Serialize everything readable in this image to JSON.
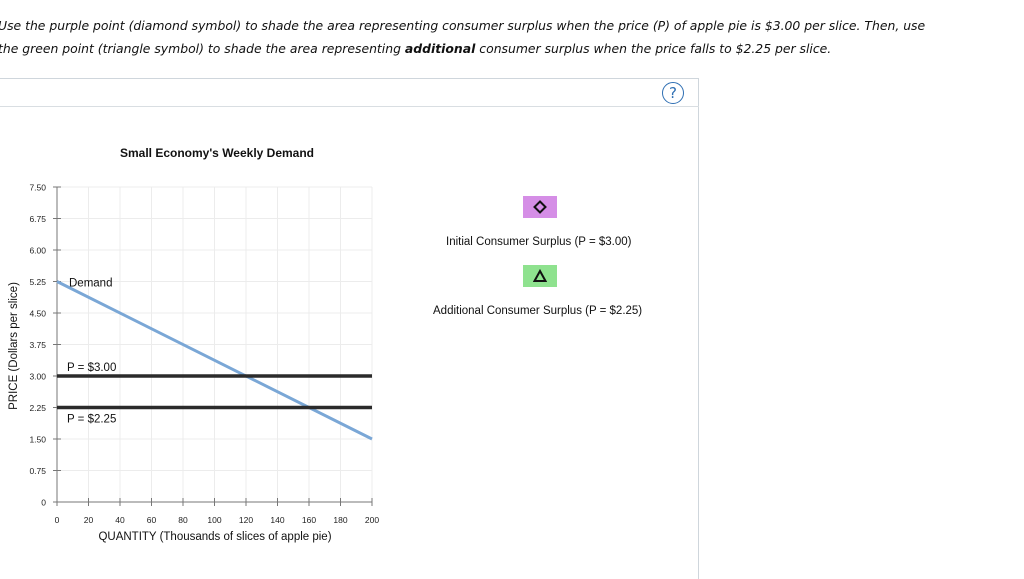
{
  "instructions": {
    "line1": "Use the purple point (diamond symbol) to shade the area representing consumer surplus when the price (P) of apple pie is $3.00 per slice. Then, use",
    "line2_start": "the green point (triangle symbol) to shade the area representing ",
    "line2_bold": "additional",
    "line2_end": " consumer surplus when the price falls to $2.25 per slice."
  },
  "help_label": "?",
  "tools": [
    {
      "label": "Initial Consumer Surplus (P = $3.00)",
      "color": "#d58ee6",
      "icon": "diamond-icon"
    },
    {
      "label": "Additional Consumer Surplus (P = $2.25)",
      "color": "#8fe28f",
      "icon": "triangle-icon"
    }
  ],
  "chart_data": {
    "type": "line",
    "title": "Small Economy's Weekly Demand",
    "xlabel": "QUANTITY (Thousands of slices of apple pie)",
    "ylabel": "PRICE (Dollars per slice)",
    "xlim": [
      0,
      200
    ],
    "ylim": [
      0,
      7.5
    ],
    "x_ticks": [
      0,
      20,
      40,
      60,
      80,
      100,
      120,
      140,
      160,
      180,
      200
    ],
    "y_ticks": [
      "0",
      "0.75",
      "1.50",
      "2.25",
      "3.00",
      "3.75",
      "4.50",
      "5.25",
      "6.00",
      "6.75",
      "7.50"
    ],
    "y_tick_values": [
      0,
      0.75,
      1.5,
      2.25,
      3.0,
      3.75,
      4.5,
      5.25,
      6.0,
      6.75,
      7.5
    ],
    "grid": true,
    "series": [
      {
        "name": "Demand",
        "x": [
          0,
          200
        ],
        "y": [
          5.25,
          1.5
        ],
        "color": "#7aa7d6"
      }
    ],
    "price_lines": [
      {
        "label": "P = $3.00",
        "y": 3.0,
        "color": "#2b2b2b"
      },
      {
        "label": "P = $2.25",
        "y": 2.25,
        "color": "#2b2b2b"
      }
    ]
  }
}
